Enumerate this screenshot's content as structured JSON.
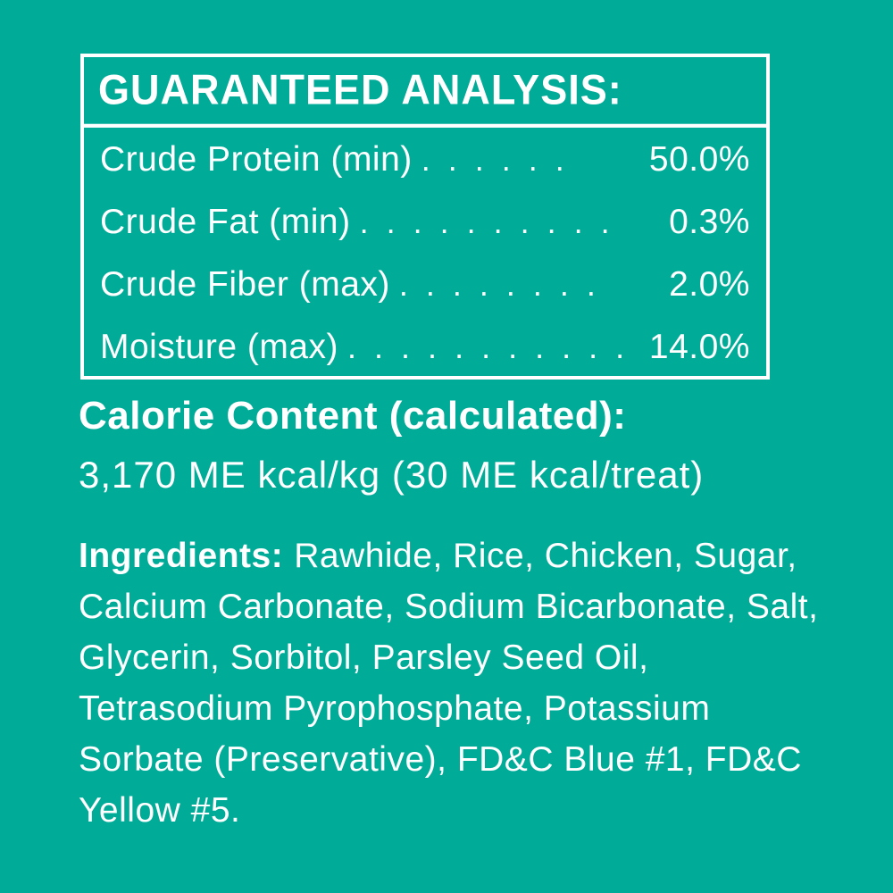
{
  "colors": {
    "background": "#00AB98",
    "text": "#FFFFFF",
    "box_border": "#FFFFFF"
  },
  "guaranteed_analysis": {
    "title": "GUARANTEED ANALYSIS:",
    "rows": [
      {
        "label": "Crude Protein (min)",
        "dots": ". . . . . .",
        "value": "50.0%"
      },
      {
        "label": "Crude Fat (min)",
        "dots": ". . . . . . . . . .",
        "value": "0.3%"
      },
      {
        "label": "Crude Fiber (max)",
        "dots": ". . . . . . . .",
        "value": "2.0%"
      },
      {
        "label": "Moisture (max)",
        "dots": ". . . . . . . . . . .",
        "value": "14.0%"
      }
    ]
  },
  "calorie_content": {
    "heading": "Calorie Content (calculated):",
    "value": "3,170 ME kcal/kg (30 ME kcal/treat)"
  },
  "ingredients": {
    "label": "Ingredients:",
    "lines": [
      "Rawhide, Rice, Chicken, Sugar,",
      "Calcium Carbonate, Sodium Bicarbonate, Salt,",
      "Glycerin, Sorbitol, Parsley Seed Oil,",
      "Tetrasodium Pyrophosphate, Potassium",
      "Sorbate (Preservative), FD&C Blue #1, FD&C",
      "Yellow #5."
    ]
  }
}
